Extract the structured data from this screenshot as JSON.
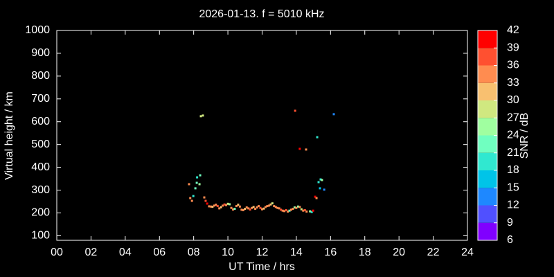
{
  "chart_data": {
    "type": "scatter",
    "title": "2026-01-13. f = 5010 kHz",
    "x_label": "UT Time / hrs",
    "y_label": "Virtual height / km",
    "xlim": [
      0,
      24
    ],
    "xticks": [
      {
        "value": 0,
        "label": "00"
      },
      {
        "value": 2,
        "label": "02"
      },
      {
        "value": 4,
        "label": "04"
      },
      {
        "value": 6,
        "label": "06"
      },
      {
        "value": 8,
        "label": "08"
      },
      10,
      12,
      14,
      16,
      18,
      20,
      22,
      24
    ],
    "ylim": [
      80,
      1000
    ],
    "yticks": [
      100,
      200,
      300,
      400,
      500,
      600,
      700,
      800,
      900,
      1000
    ],
    "colorbar": {
      "label": "SNR / dB",
      "ticks": [
        6,
        9,
        12,
        15,
        18,
        21,
        24,
        27,
        30,
        33,
        36,
        39,
        42
      ],
      "colors": [
        "#8000ff",
        "#5050ff",
        "#1e88ff",
        "#00c4e8",
        "#30e8d0",
        "#70ffc0",
        "#a0ffa0",
        "#d0e880",
        "#f8c070",
        "#ff8c50",
        "#ff5030",
        "#ff0000"
      ]
    },
    "x": [
      7.73,
      7.8,
      7.9,
      7.98,
      8.1,
      8.18,
      8.2,
      8.34,
      8.38,
      8.42,
      8.54,
      8.62,
      8.7,
      8.79,
      8.9,
      9.0,
      9.1,
      9.2,
      9.3,
      9.4,
      9.5,
      9.6,
      9.7,
      9.8,
      9.9,
      10.0,
      10.1,
      10.2,
      10.3,
      10.4,
      10.5,
      10.6,
      10.7,
      10.8,
      10.9,
      11.0,
      11.1,
      11.2,
      11.3,
      11.4,
      11.5,
      11.6,
      11.7,
      11.8,
      11.9,
      12.0,
      12.1,
      12.2,
      12.3,
      12.4,
      12.5,
      12.6,
      12.7,
      12.8,
      12.9,
      13.0,
      13.1,
      13.2,
      13.3,
      13.4,
      13.5,
      13.6,
      13.7,
      13.8,
      13.9,
      14.0,
      14.1,
      14.2,
      14.3,
      14.4,
      14.5,
      14.6,
      13.93,
      14.2,
      14.57,
      15.22,
      16.19,
      15.3,
      15.42,
      15.5,
      15.38,
      15.63,
      15.1,
      15.18,
      14.8,
      14.9,
      14.98
    ],
    "values": [
      326,
      265,
      253,
      274,
      308,
      332,
      356,
      326,
      365,
      624,
      627,
      268,
      253,
      241,
      229,
      228,
      227,
      232,
      236,
      230,
      220,
      225,
      232,
      237,
      234,
      240,
      238,
      222,
      215,
      218,
      230,
      236,
      228,
      214,
      212,
      218,
      224,
      220,
      215,
      222,
      226,
      218,
      224,
      230,
      222,
      216,
      219,
      226,
      230,
      232,
      237,
      242,
      230,
      226,
      222,
      220,
      214,
      210,
      208,
      212,
      206,
      210,
      214,
      218,
      224,
      222,
      228,
      226,
      216,
      210,
      212,
      206,
      648,
      481,
      478,
      532,
      633,
      335,
      347,
      344,
      308,
      302,
      271,
      265,
      207,
      204,
      210
    ],
    "snr": [
      33,
      33,
      34,
      18,
      21,
      21,
      18,
      24,
      21,
      28,
      27,
      33,
      36,
      39,
      33,
      33,
      31,
      33,
      34,
      36,
      33,
      31,
      33,
      36,
      34,
      28,
      25,
      33,
      34,
      22,
      33,
      31,
      34,
      33,
      33,
      31,
      33,
      34,
      36,
      33,
      31,
      33,
      34,
      33,
      36,
      33,
      31,
      33,
      34,
      33,
      31,
      27,
      33,
      34,
      33,
      34,
      36,
      33,
      34,
      36,
      33,
      22,
      33,
      34,
      24,
      33,
      25,
      33,
      28,
      34,
      36,
      33,
      37,
      41,
      35,
      19,
      13,
      19,
      18,
      24,
      15,
      13,
      39,
      33,
      24,
      20,
      40
    ]
  }
}
